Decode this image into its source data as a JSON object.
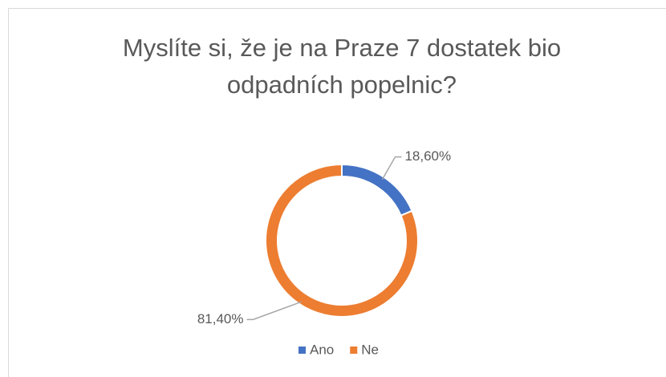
{
  "chart_data": {
    "type": "donut",
    "title": [
      "Myslíte si, že je na Praze 7 dostatek bio",
      "odpadních popelnic?"
    ],
    "categories": [
      "Ano",
      "Ne"
    ],
    "values": [
      18.6,
      81.4
    ],
    "value_labels": [
      "18,60%",
      "81,40%"
    ],
    "colors": [
      "#4472c4",
      "#ed7d31"
    ],
    "legend": "bottom"
  }
}
